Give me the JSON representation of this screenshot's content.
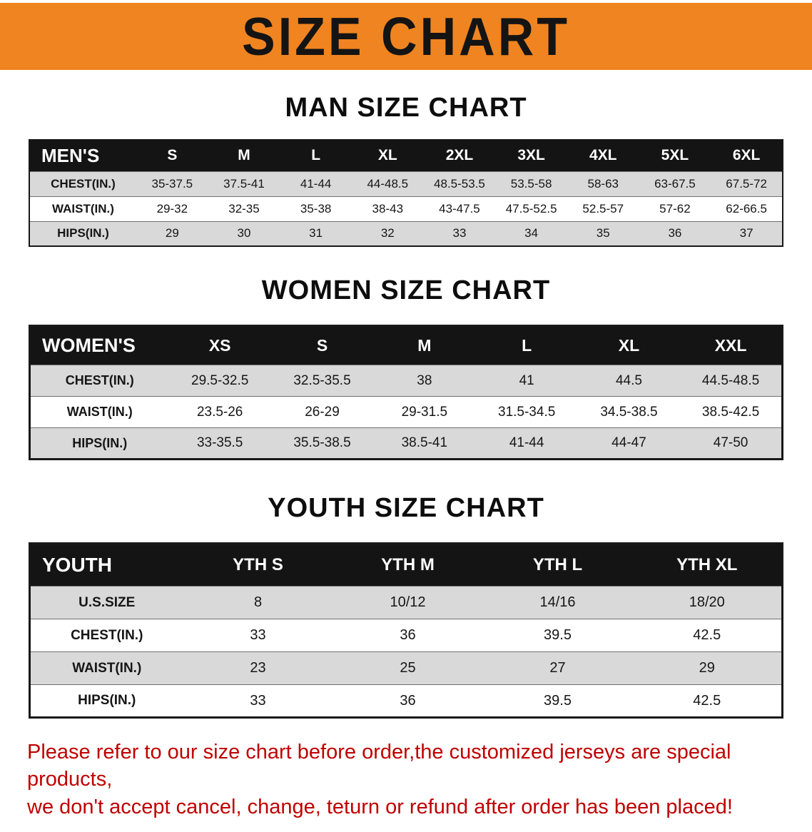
{
  "banner": {
    "title": "SIZE CHART"
  },
  "sections": [
    {
      "id": "men",
      "heading": "MAN SIZE CHART",
      "table": {
        "header": [
          "MEN'S",
          "S",
          "M",
          "L",
          "XL",
          "2XL",
          "3XL",
          "4XL",
          "5XL",
          "6XL"
        ],
        "rows": [
          [
            "CHEST(IN.)",
            "35-37.5",
            "37.5-41",
            "41-44",
            "44-48.5",
            "48.5-53.5",
            "53.5-58",
            "58-63",
            "63-67.5",
            "67.5-72"
          ],
          [
            "WAIST(IN.)",
            "29-32",
            "32-35",
            "35-38",
            "38-43",
            "43-47.5",
            "47.5-52.5",
            "52.5-57",
            "57-62",
            "62-66.5"
          ],
          [
            "HIPS(IN.)",
            "29",
            "30",
            "31",
            "32",
            "33",
            "34",
            "35",
            "36",
            "37"
          ]
        ]
      }
    },
    {
      "id": "women",
      "heading": "WOMEN SIZE CHART",
      "table": {
        "header": [
          "WOMEN'S",
          "XS",
          "S",
          "M",
          "L",
          "XL",
          "XXL"
        ],
        "rows": [
          [
            "CHEST(IN.)",
            "29.5-32.5",
            "32.5-35.5",
            "38",
            "41",
            "44.5",
            "44.5-48.5"
          ],
          [
            "WAIST(IN.)",
            "23.5-26",
            "26-29",
            "29-31.5",
            "31.5-34.5",
            "34.5-38.5",
            "38.5-42.5"
          ],
          [
            "HIPS(IN.)",
            "33-35.5",
            "35.5-38.5",
            "38.5-41",
            "41-44",
            "44-47",
            "47-50"
          ]
        ]
      }
    },
    {
      "id": "youth",
      "heading": "YOUTH SIZE CHART",
      "table": {
        "header": [
          "YOUTH",
          "YTH S",
          "YTH M",
          "YTH L",
          "YTH XL"
        ],
        "rows": [
          [
            "U.S.SIZE",
            "8",
            "10/12",
            "14/16",
            "18/20"
          ],
          [
            "CHEST(IN.)",
            "33",
            "36",
            "39.5",
            "42.5"
          ],
          [
            "WAIST(IN.)",
            "23",
            "25",
            "27",
            "29"
          ],
          [
            "HIPS(IN.)",
            "33",
            "36",
            "39.5",
            "42.5"
          ]
        ]
      }
    }
  ],
  "disclaimer": {
    "line1": "Please refer to our size chart before order,the customized jerseys are special products,",
    "line2": "we don't accept cancel, change, teturn or refund after order has been placed!"
  },
  "colors": {
    "banner_bg": "#F08420",
    "header_bg": "#141414",
    "stripe_bg": "#D9D9D9",
    "disclaimer_text": "#C00000"
  }
}
